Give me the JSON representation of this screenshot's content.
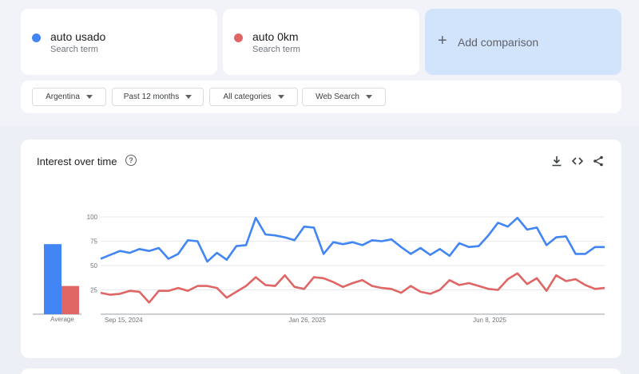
{
  "terms": [
    {
      "label": "auto usado",
      "sub": "Search term",
      "color": "#4285f4"
    },
    {
      "label": "auto 0km",
      "sub": "Search term",
      "color": "#e06666"
    }
  ],
  "add_comparison": {
    "label": "Add comparison"
  },
  "filters": {
    "region": "Argentina",
    "period": "Past 12 months",
    "category": "All categories",
    "search_type": "Web Search"
  },
  "chart": {
    "title": "Interest over time",
    "average_label": "Average"
  },
  "chart_data": {
    "type": "line",
    "y_ticks": [
      100,
      75,
      50,
      25
    ],
    "ylim": [
      0,
      100
    ],
    "x_tick_labels": [
      "Sep 15, 2024",
      "Jan 26, 2025",
      "Jun 8, 2025"
    ],
    "x_tick_indices": [
      0,
      19,
      38
    ],
    "averages": [
      72,
      29
    ],
    "series": [
      {
        "name": "auto usado",
        "color": "#4285f4",
        "values": [
          57,
          61,
          65,
          63,
          67,
          65,
          68,
          57,
          62,
          76,
          75,
          54,
          63,
          56,
          70,
          71,
          99,
          82,
          81,
          79,
          76,
          90,
          89,
          62,
          74,
          72,
          74,
          71,
          76,
          75,
          77,
          69,
          62,
          68,
          61,
          67,
          60,
          73,
          69,
          70,
          81,
          94,
          90,
          99,
          87,
          89,
          71,
          79,
          80,
          62,
          62,
          69,
          69
        ]
      },
      {
        "name": "auto 0km",
        "color": "#e06666",
        "values": [
          22,
          20,
          21,
          24,
          23,
          12,
          24,
          24,
          27,
          24,
          29,
          29,
          27,
          17,
          23,
          29,
          38,
          30,
          29,
          40,
          28,
          26,
          38,
          37,
          33,
          28,
          32,
          35,
          29,
          27,
          26,
          22,
          29,
          23,
          21,
          25,
          35,
          30,
          32,
          29,
          26,
          25,
          36,
          42,
          31,
          37,
          24,
          40,
          34,
          36,
          30,
          26,
          27
        ]
      }
    ]
  }
}
